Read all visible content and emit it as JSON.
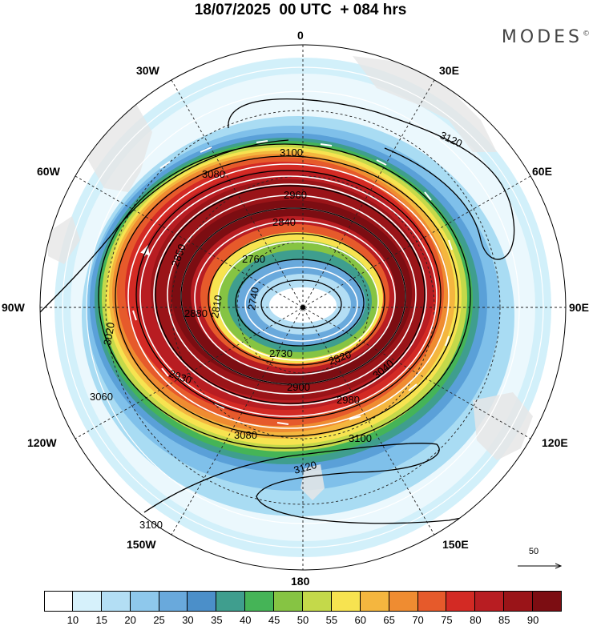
{
  "header": {
    "title": "18/07/2025  00 UTC  + 084 hrs",
    "brand": "MODES",
    "brand_mark": "©"
  },
  "map": {
    "projection": "south polar stereographic",
    "longitude_labels": [
      "0",
      "30E",
      "60E",
      "90E",
      "120E",
      "150E",
      "180",
      "150W",
      "120W",
      "90W",
      "60W",
      "30W"
    ],
    "contour_labels": [
      "3100",
      "3080",
      "3120",
      "2960",
      "2840",
      "2760",
      "2740",
      "2810",
      "2880",
      "2850",
      "3020",
      "3060",
      "2930",
      "2820",
      "2730",
      "2900",
      "2980",
      "3040",
      "3100",
      "3080",
      "3120",
      "3100"
    ],
    "wind_field": "wind speed shading with streamline arrows",
    "colors": {
      "land": "#e6e6e6",
      "ocean": "#ffffff"
    }
  },
  "vector_reference": {
    "label": "50"
  },
  "colorbar": {
    "ticks": [
      "10",
      "15",
      "20",
      "25",
      "30",
      "35",
      "40",
      "45",
      "50",
      "55",
      "60",
      "65",
      "70",
      "75",
      "80",
      "85",
      "90"
    ],
    "colors": [
      "#ffffff",
      "#d6f1fb",
      "#b3def4",
      "#8ec8ec",
      "#69a9dc",
      "#4b8fc9",
      "#3f9e8e",
      "#45b457",
      "#86c443",
      "#c4d94a",
      "#f7e350",
      "#f4b63f",
      "#ef8c31",
      "#e65a2b",
      "#d32a24",
      "#b81d22",
      "#9a1418",
      "#7c0d12"
    ]
  }
}
